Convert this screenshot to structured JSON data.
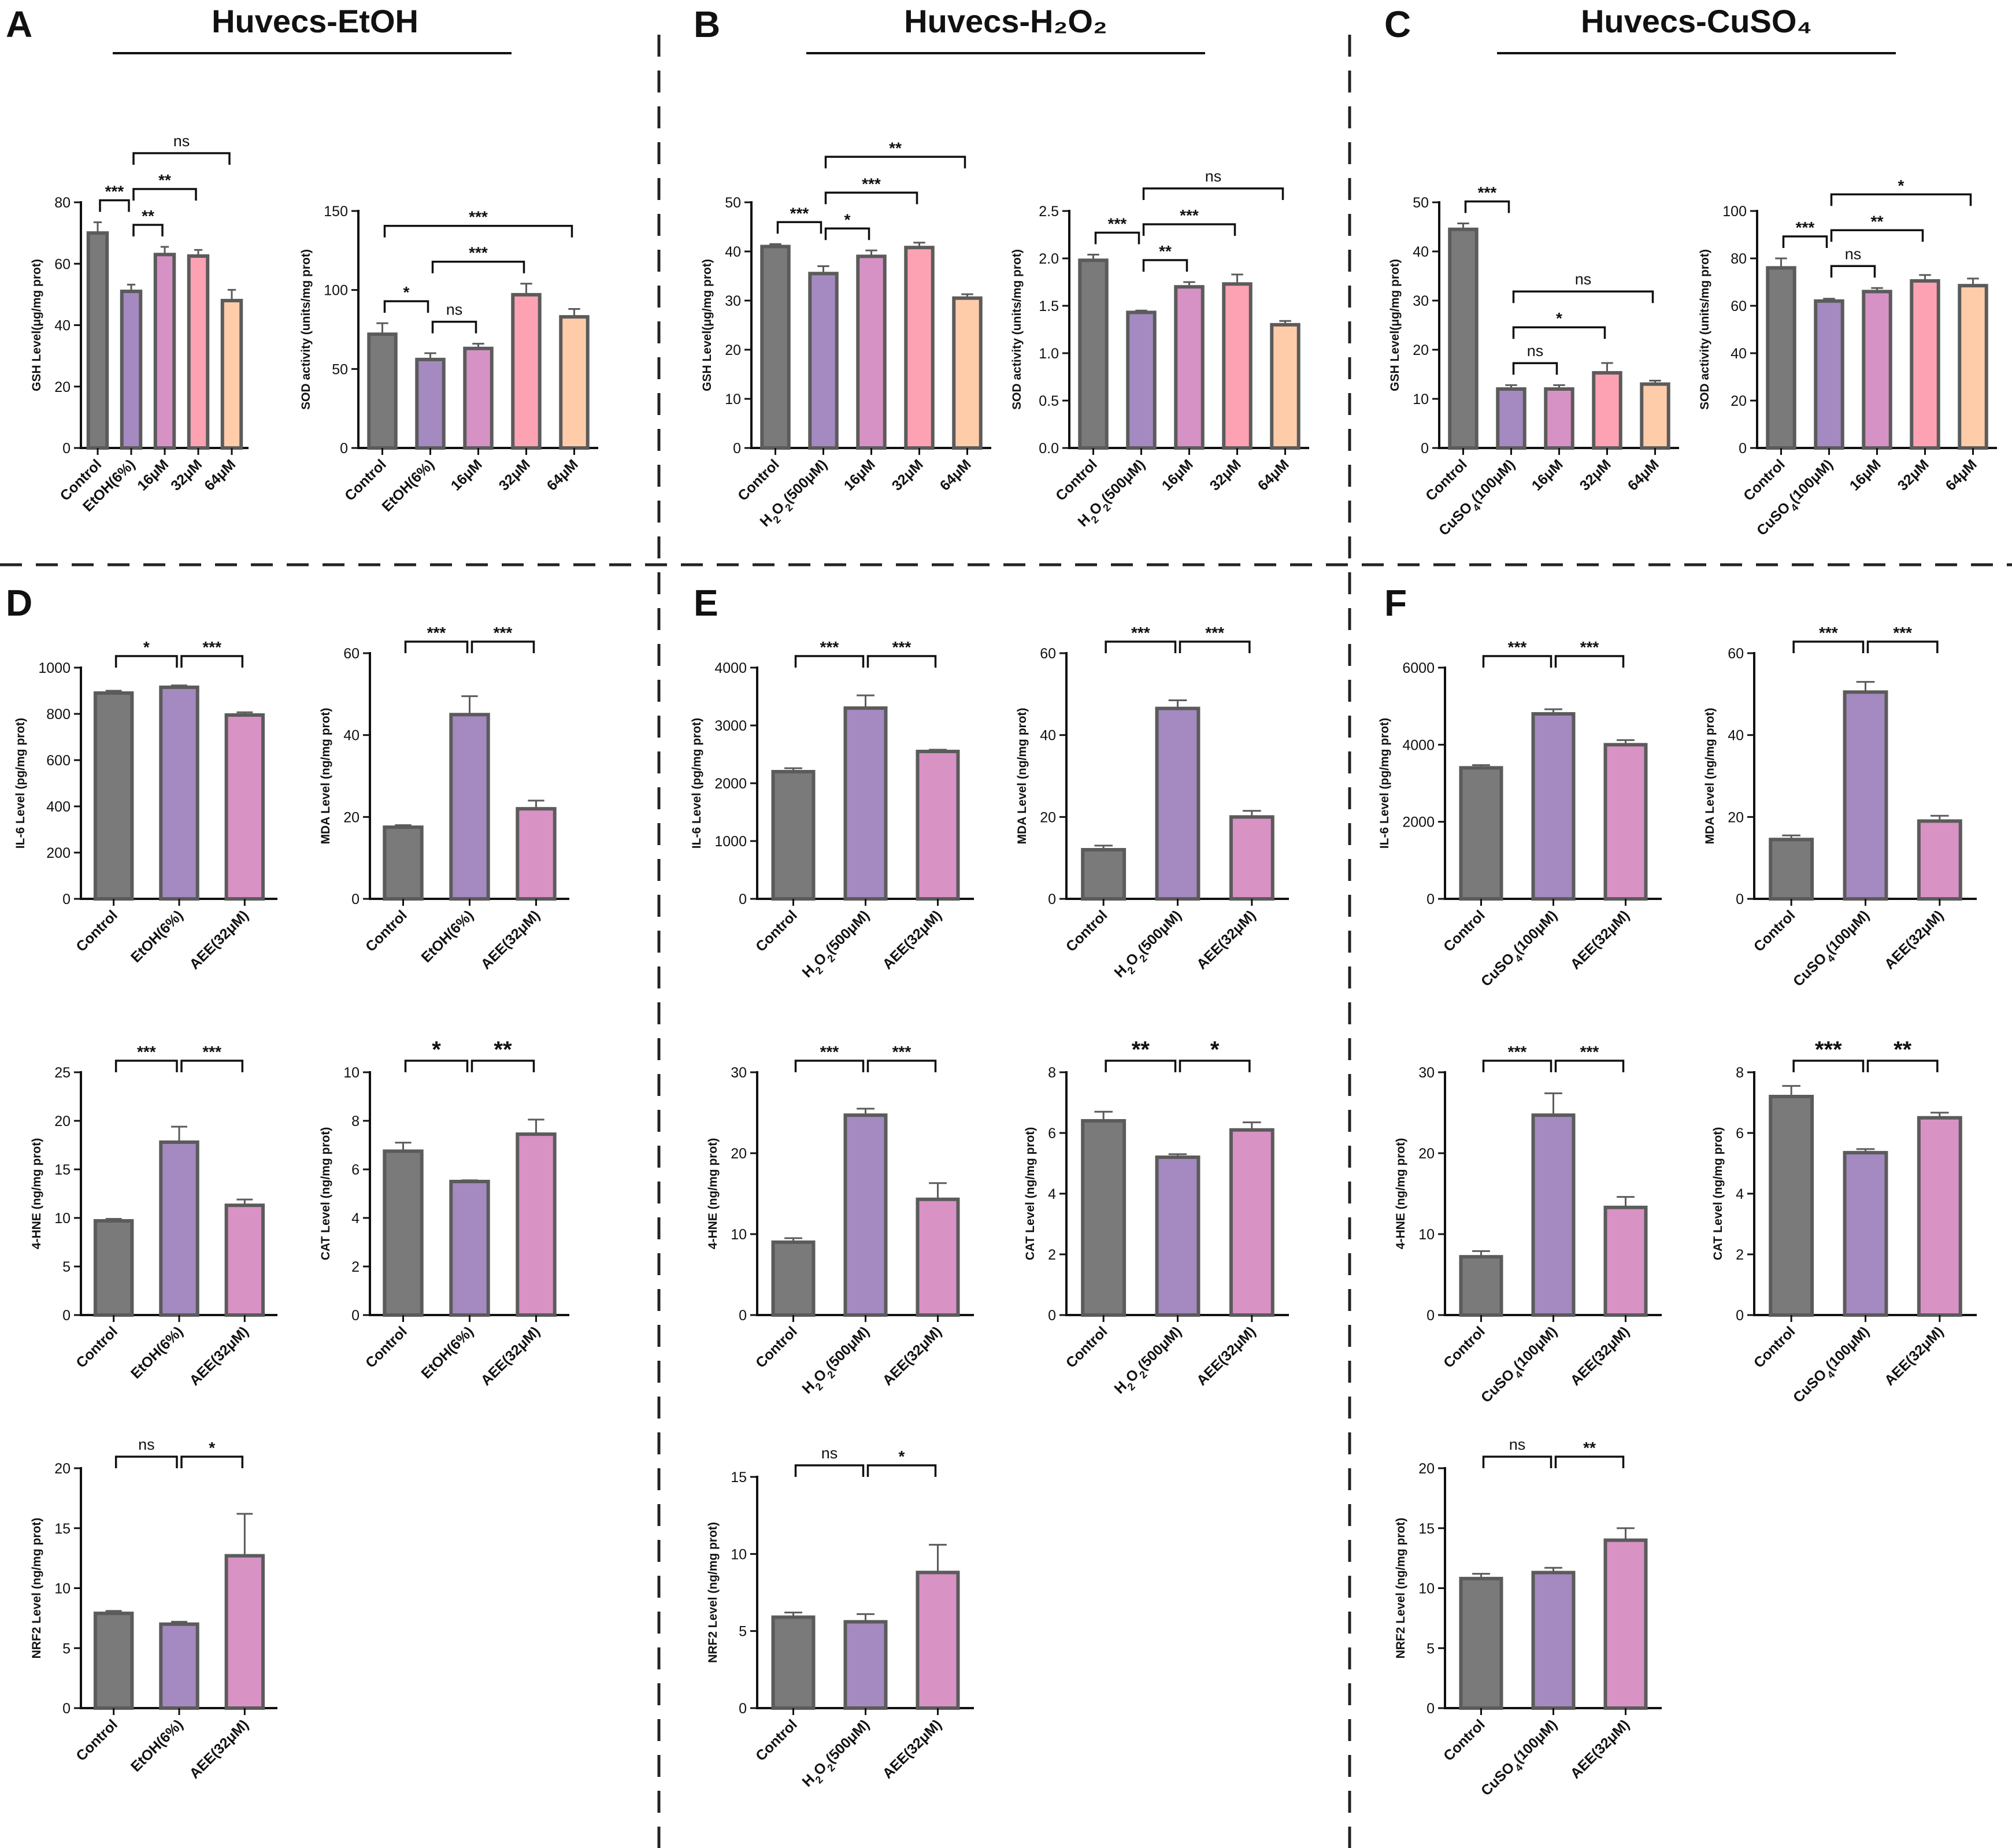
{
  "colors": {
    "control": "#7a7a7a",
    "model": "#a48ac0",
    "low": "#d692c4",
    "mid": "#fca2b2",
    "high": "#fecca9",
    "pink": "#d892c4"
  },
  "sections": [
    {
      "letter": "A",
      "title": "Huvecs-EtOH"
    },
    {
      "letter": "B",
      "title": "Huvecs-H₂O₂"
    },
    {
      "letter": "C",
      "title": "Huvecs-CuSO₄"
    }
  ],
  "bottom_letters": [
    "D",
    "E",
    "F"
  ],
  "chart_data": [
    {
      "id": "A1",
      "panel": "A",
      "type": "bar",
      "ylabel": "GSH Level(μg/mg prot)",
      "ylim": [
        0,
        80
      ],
      "yticks": [
        0,
        20,
        40,
        60,
        80
      ],
      "categories": [
        "Control",
        "EtOH(6%)",
        "16μM",
        "32μM",
        "64μM"
      ],
      "colors": [
        "control",
        "model",
        "low",
        "mid",
        "high"
      ],
      "values": [
        70,
        51,
        63,
        62.5,
        48
      ],
      "errors": [
        3.5,
        2.2,
        2.5,
        2,
        3.5
      ],
      "comparisons": [
        {
          "a": 0,
          "b": 1,
          "label": "***"
        },
        {
          "a": 1,
          "b": 2,
          "label": "**"
        },
        {
          "a": 1,
          "b": 3,
          "label": "**"
        },
        {
          "a": 1,
          "b": 4,
          "label": "ns"
        }
      ]
    },
    {
      "id": "A2",
      "panel": "A",
      "type": "bar",
      "ylabel": "SOD activity (units/mg prot)",
      "ylim": [
        0,
        150
      ],
      "yticks": [
        0,
        50,
        100,
        150
      ],
      "categories": [
        "Control",
        "EtOH(6%)",
        "16μM",
        "32μM",
        "64μM"
      ],
      "colors": [
        "control",
        "model",
        "low",
        "mid",
        "high"
      ],
      "values": [
        72,
        56,
        63,
        97,
        83
      ],
      "errors": [
        7,
        4,
        3,
        7,
        5
      ],
      "comparisons": [
        {
          "a": 0,
          "b": 1,
          "label": "*"
        },
        {
          "a": 1,
          "b": 2,
          "label": "ns"
        },
        {
          "a": 1,
          "b": 3,
          "label": "***"
        },
        {
          "a": 0,
          "b": 4,
          "label": "***"
        }
      ]
    },
    {
      "id": "B1",
      "panel": "B",
      "type": "bar",
      "ylabel": "GSH Level(μg/mg prot)",
      "ylim": [
        0,
        50
      ],
      "yticks": [
        0,
        10,
        20,
        30,
        40,
        50
      ],
      "categories": [
        "Control",
        "H₂O₂(500μM)",
        "16μM",
        "32μM",
        "64μM"
      ],
      "colors": [
        "control",
        "model",
        "low",
        "mid",
        "high"
      ],
      "values": [
        41,
        35.5,
        39,
        40.8,
        30.5
      ],
      "errors": [
        0.5,
        1.5,
        1.2,
        1,
        0.8
      ],
      "comparisons": [
        {
          "a": 0,
          "b": 1,
          "label": "***"
        },
        {
          "a": 1,
          "b": 2,
          "label": "*"
        },
        {
          "a": 1,
          "b": 3,
          "label": "***"
        },
        {
          "a": 1,
          "b": 4,
          "label": "**"
        }
      ]
    },
    {
      "id": "B2",
      "panel": "B",
      "type": "bar",
      "ylabel": "SOD activity (units/mg prot)",
      "ylim": [
        0,
        2.5
      ],
      "yticks": [
        "0.0",
        "0.5",
        "1.0",
        "1.5",
        "2.0",
        "2.5"
      ],
      "categories": [
        "Control",
        "H₂O₂(500μM)",
        "16μM",
        "32μM",
        "64μM"
      ],
      "colors": [
        "control",
        "model",
        "low",
        "mid",
        "high"
      ],
      "values": [
        1.98,
        1.43,
        1.7,
        1.73,
        1.3
      ],
      "errors": [
        0.06,
        0.02,
        0.05,
        0.1,
        0.04
      ],
      "comparisons": [
        {
          "a": 0,
          "b": 1,
          "label": "***"
        },
        {
          "a": 1,
          "b": 2,
          "label": "**"
        },
        {
          "a": 1,
          "b": 3,
          "label": "***"
        },
        {
          "a": 1,
          "b": 4,
          "label": "ns"
        }
      ]
    },
    {
      "id": "C1",
      "panel": "C",
      "type": "bar",
      "ylabel": "GSH Level(μg/mg prot)",
      "ylim": [
        0,
        50
      ],
      "yticks": [
        0,
        10,
        20,
        30,
        40,
        50
      ],
      "categories": [
        "Control",
        "CuSO₄(100μM)",
        "16μM",
        "32μM",
        "64μM"
      ],
      "colors": [
        "control",
        "model",
        "low",
        "mid",
        "high"
      ],
      "values": [
        44.5,
        12,
        12,
        15.3,
        13
      ],
      "errors": [
        1.2,
        0.8,
        0.8,
        2,
        0.7
      ],
      "comparisons": [
        {
          "a": 0,
          "b": 1,
          "label": "***"
        },
        {
          "a": 1,
          "b": 2,
          "label": "ns"
        },
        {
          "a": 1,
          "b": 3,
          "label": "*"
        },
        {
          "a": 1,
          "b": 4,
          "label": "ns"
        }
      ]
    },
    {
      "id": "C2",
      "panel": "C",
      "type": "bar",
      "ylabel": "SOD activity (units/mg prot)",
      "ylim": [
        0,
        100
      ],
      "yticks": [
        0,
        20,
        40,
        60,
        80,
        100
      ],
      "categories": [
        "Control",
        "CuSO₄(100μM)",
        "16μM",
        "32μM",
        "64μM"
      ],
      "colors": [
        "control",
        "model",
        "low",
        "mid",
        "high"
      ],
      "values": [
        76,
        62,
        66,
        70.5,
        68.5
      ],
      "errors": [
        4,
        1,
        1.5,
        2.5,
        3
      ],
      "comparisons": [
        {
          "a": 0,
          "b": 1,
          "label": "***"
        },
        {
          "a": 1,
          "b": 2,
          "label": "ns"
        },
        {
          "a": 1,
          "b": 3,
          "label": "**"
        },
        {
          "a": 1,
          "b": 4,
          "label": "*"
        }
      ]
    },
    {
      "id": "D1",
      "panel": "D",
      "type": "bar",
      "ylabel": "IL-6 Level (pg/mg prot)",
      "ylim": [
        0,
        1000
      ],
      "yticks": [
        0,
        200,
        400,
        600,
        800,
        1000
      ],
      "categories": [
        "Control",
        "EtOH(6%)",
        "AEE(32μM)"
      ],
      "colors": [
        "control",
        "model",
        "pink"
      ],
      "values": [
        890,
        915,
        795
      ],
      "errors": [
        10,
        8,
        12
      ],
      "comparisons": [
        {
          "a": 0,
          "b": 1,
          "label": "*"
        },
        {
          "a": 1,
          "b": 2,
          "label": "***"
        }
      ]
    },
    {
      "id": "D2",
      "panel": "D",
      "type": "bar",
      "ylabel": "MDA Level (ng/mg prot)",
      "ylim": [
        0,
        60
      ],
      "yticks": [
        0,
        20,
        40,
        60
      ],
      "categories": [
        "Control",
        "EtOH(6%)",
        "AEE(32μM)"
      ],
      "colors": [
        "control",
        "model",
        "pink"
      ],
      "values": [
        17.5,
        45,
        22
      ],
      "errors": [
        0.5,
        4.5,
        2
      ],
      "comparisons": [
        {
          "a": 0,
          "b": 1,
          "label": "***"
        },
        {
          "a": 1,
          "b": 2,
          "label": "***"
        }
      ]
    },
    {
      "id": "D3",
      "panel": "D",
      "type": "bar",
      "ylabel": "4-HNE (ng/mg prot)",
      "ylim": [
        0,
        25
      ],
      "yticks": [
        0,
        5,
        10,
        15,
        20,
        25
      ],
      "categories": [
        "Control",
        "EtOH(6%)",
        "AEE(32μM)"
      ],
      "colors": [
        "control",
        "model",
        "pink"
      ],
      "values": [
        9.7,
        17.8,
        11.3
      ],
      "errors": [
        0.2,
        1.6,
        0.6
      ],
      "comparisons": [
        {
          "a": 0,
          "b": 1,
          "label": "***"
        },
        {
          "a": 1,
          "b": 2,
          "label": "***"
        }
      ]
    },
    {
      "id": "D4",
      "panel": "D",
      "type": "bar",
      "ylabel": "CAT Level (ng/mg prot)",
      "ylim": [
        0,
        10
      ],
      "yticks": [
        0,
        2,
        4,
        6,
        8,
        10
      ],
      "categories": [
        "Control",
        "EtOH(6%)",
        "AEE(32μM)"
      ],
      "colors": [
        "control",
        "model",
        "pink"
      ],
      "values": [
        6.75,
        5.5,
        7.45
      ],
      "errors": [
        0.35,
        0.05,
        0.6
      ],
      "bigSig": true,
      "comparisons": [
        {
          "a": 0,
          "b": 1,
          "label": "*"
        },
        {
          "a": 1,
          "b": 2,
          "label": "**"
        }
      ]
    },
    {
      "id": "D5",
      "panel": "D",
      "type": "bar",
      "ylabel": "NRF2 Level (ng/mg prot)",
      "ylim": [
        0,
        20
      ],
      "yticks": [
        0,
        5,
        10,
        15,
        20
      ],
      "categories": [
        "Control",
        "EtOH(6%)",
        "AEE(32μM)"
      ],
      "colors": [
        "control",
        "model",
        "pink"
      ],
      "values": [
        7.9,
        7,
        12.7
      ],
      "errors": [
        0.2,
        0.2,
        3.5
      ],
      "comparisons": [
        {
          "a": 0,
          "b": 1,
          "label": "ns"
        },
        {
          "a": 1,
          "b": 2,
          "label": "*"
        }
      ]
    },
    {
      "id": "E1",
      "panel": "E",
      "type": "bar",
      "ylabel": "IL-6 Level (pg/mg prot)",
      "ylim": [
        0,
        4000
      ],
      "yticks": [
        0,
        1000,
        2000,
        3000,
        4000
      ],
      "categories": [
        "Control",
        "H₂O₂(500μM)",
        "AEE(32μM)"
      ],
      "colors": [
        "control",
        "model",
        "pink"
      ],
      "values": [
        2200,
        3300,
        2550
      ],
      "errors": [
        60,
        220,
        30
      ],
      "comparisons": [
        {
          "a": 0,
          "b": 1,
          "label": "***"
        },
        {
          "a": 1,
          "b": 2,
          "label": "***"
        }
      ]
    },
    {
      "id": "E2",
      "panel": "E",
      "type": "bar",
      "ylabel": "MDA Level (ng/mg prot)",
      "ylim": [
        0,
        60
      ],
      "yticks": [
        0,
        20,
        40,
        60
      ],
      "categories": [
        "Control",
        "H₂O₂(500μM)",
        "AEE(32μM)"
      ],
      "colors": [
        "control",
        "model",
        "pink"
      ],
      "values": [
        12,
        46.5,
        20
      ],
      "errors": [
        1,
        2,
        1.5
      ],
      "comparisons": [
        {
          "a": 0,
          "b": 1,
          "label": "***"
        },
        {
          "a": 1,
          "b": 2,
          "label": "***"
        }
      ]
    },
    {
      "id": "E3",
      "panel": "E",
      "type": "bar",
      "ylabel": "4-HNE (ng/mg prot)",
      "ylim": [
        0,
        30
      ],
      "yticks": [
        0,
        10,
        20,
        30
      ],
      "categories": [
        "Control",
        "H₂O₂(500μM)",
        "AEE(32μM)"
      ],
      "colors": [
        "control",
        "model",
        "pink"
      ],
      "values": [
        9,
        24.7,
        14.3
      ],
      "errors": [
        0.5,
        0.8,
        2
      ],
      "comparisons": [
        {
          "a": 0,
          "b": 1,
          "label": "***"
        },
        {
          "a": 1,
          "b": 2,
          "label": "***"
        }
      ]
    },
    {
      "id": "E4",
      "panel": "E",
      "type": "bar",
      "ylabel": "CAT Level (ng/mg prot)",
      "ylim": [
        0,
        8
      ],
      "yticks": [
        0,
        2,
        4,
        6,
        8
      ],
      "categories": [
        "Control",
        "H₂O₂(500μM)",
        "AEE(32μM)"
      ],
      "colors": [
        "control",
        "model",
        "pink"
      ],
      "values": [
        6.4,
        5.2,
        6.1
      ],
      "errors": [
        0.3,
        0.1,
        0.25
      ],
      "bigSig": true,
      "comparisons": [
        {
          "a": 0,
          "b": 1,
          "label": "**"
        },
        {
          "a": 1,
          "b": 2,
          "label": "*"
        }
      ]
    },
    {
      "id": "E5",
      "panel": "E",
      "type": "bar",
      "ylabel": "NRF2 Level (ng/mg prot)",
      "ylim": [
        0,
        15
      ],
      "yticks": [
        0,
        5,
        10,
        15
      ],
      "categories": [
        "Control",
        "H₂O₂(500μM)",
        "AEE(32μM)"
      ],
      "colors": [
        "control",
        "model",
        "pink"
      ],
      "values": [
        5.9,
        5.6,
        8.8
      ],
      "errors": [
        0.3,
        0.5,
        1.8
      ],
      "comparisons": [
        {
          "a": 0,
          "b": 1,
          "label": "ns"
        },
        {
          "a": 1,
          "b": 2,
          "label": "*"
        }
      ]
    },
    {
      "id": "F1",
      "panel": "F",
      "type": "bar",
      "ylabel": "IL-6 Level (pg/mg prot)",
      "ylim": [
        0,
        6000
      ],
      "yticks": [
        0,
        2000,
        4000,
        6000
      ],
      "categories": [
        "Control",
        "CuSO₄(100μM)",
        "AEE(32μM)"
      ],
      "colors": [
        "control",
        "model",
        "pink"
      ],
      "values": [
        3400,
        4800,
        4000
      ],
      "errors": [
        70,
        120,
        120
      ],
      "comparisons": [
        {
          "a": 0,
          "b": 1,
          "label": "***"
        },
        {
          "a": 1,
          "b": 2,
          "label": "***"
        }
      ]
    },
    {
      "id": "F2",
      "panel": "F",
      "type": "bar",
      "ylabel": "MDA Level (ng/mg prot)",
      "ylim": [
        0,
        60
      ],
      "yticks": [
        0,
        20,
        40,
        60
      ],
      "categories": [
        "Control",
        "CuSO₄(100μM)",
        "AEE(32μM)"
      ],
      "colors": [
        "control",
        "model",
        "pink"
      ],
      "values": [
        14.5,
        50.5,
        19
      ],
      "errors": [
        1,
        2.5,
        1.3
      ],
      "comparisons": [
        {
          "a": 0,
          "b": 1,
          "label": "***"
        },
        {
          "a": 1,
          "b": 2,
          "label": "***"
        }
      ]
    },
    {
      "id": "F3",
      "panel": "F",
      "type": "bar",
      "ylabel": "4-HNE (ng/mg prot)",
      "ylim": [
        0,
        30
      ],
      "yticks": [
        0,
        10,
        20,
        30
      ],
      "categories": [
        "Control",
        "CuSO₄(100μM)",
        "AEE(32μM)"
      ],
      "colors": [
        "control",
        "model",
        "pink"
      ],
      "values": [
        7.2,
        24.7,
        13.3
      ],
      "errors": [
        0.7,
        2.7,
        1.3
      ],
      "comparisons": [
        {
          "a": 0,
          "b": 1,
          "label": "***"
        },
        {
          "a": 1,
          "b": 2,
          "label": "***"
        }
      ]
    },
    {
      "id": "F4",
      "panel": "F",
      "type": "bar",
      "ylabel": "CAT Level (ng/mg prot)",
      "ylim": [
        0,
        8
      ],
      "yticks": [
        0,
        2,
        4,
        6,
        8
      ],
      "categories": [
        "Control",
        "CuSO₄(100μM)",
        "AEE(32μM)"
      ],
      "colors": [
        "control",
        "model",
        "pink"
      ],
      "values": [
        7.2,
        5.35,
        6.5
      ],
      "errors": [
        0.35,
        0.12,
        0.17
      ],
      "bigSig": true,
      "comparisons": [
        {
          "a": 0,
          "b": 1,
          "label": "***"
        },
        {
          "a": 1,
          "b": 2,
          "label": "**"
        }
      ]
    },
    {
      "id": "F5",
      "panel": "F",
      "type": "bar",
      "ylabel": "NRF2 Level (ng/mg prot)",
      "ylim": [
        0,
        20
      ],
      "yticks": [
        0,
        5,
        10,
        15,
        20
      ],
      "categories": [
        "Control",
        "CuSO₄(100μM)",
        "AEE(32μM)"
      ],
      "colors": [
        "control",
        "model",
        "pink"
      ],
      "values": [
        10.8,
        11.3,
        14
      ],
      "errors": [
        0.4,
        0.4,
        1
      ],
      "comparisons": [
        {
          "a": 0,
          "b": 1,
          "label": "ns"
        },
        {
          "a": 1,
          "b": 2,
          "label": "**"
        }
      ]
    }
  ]
}
